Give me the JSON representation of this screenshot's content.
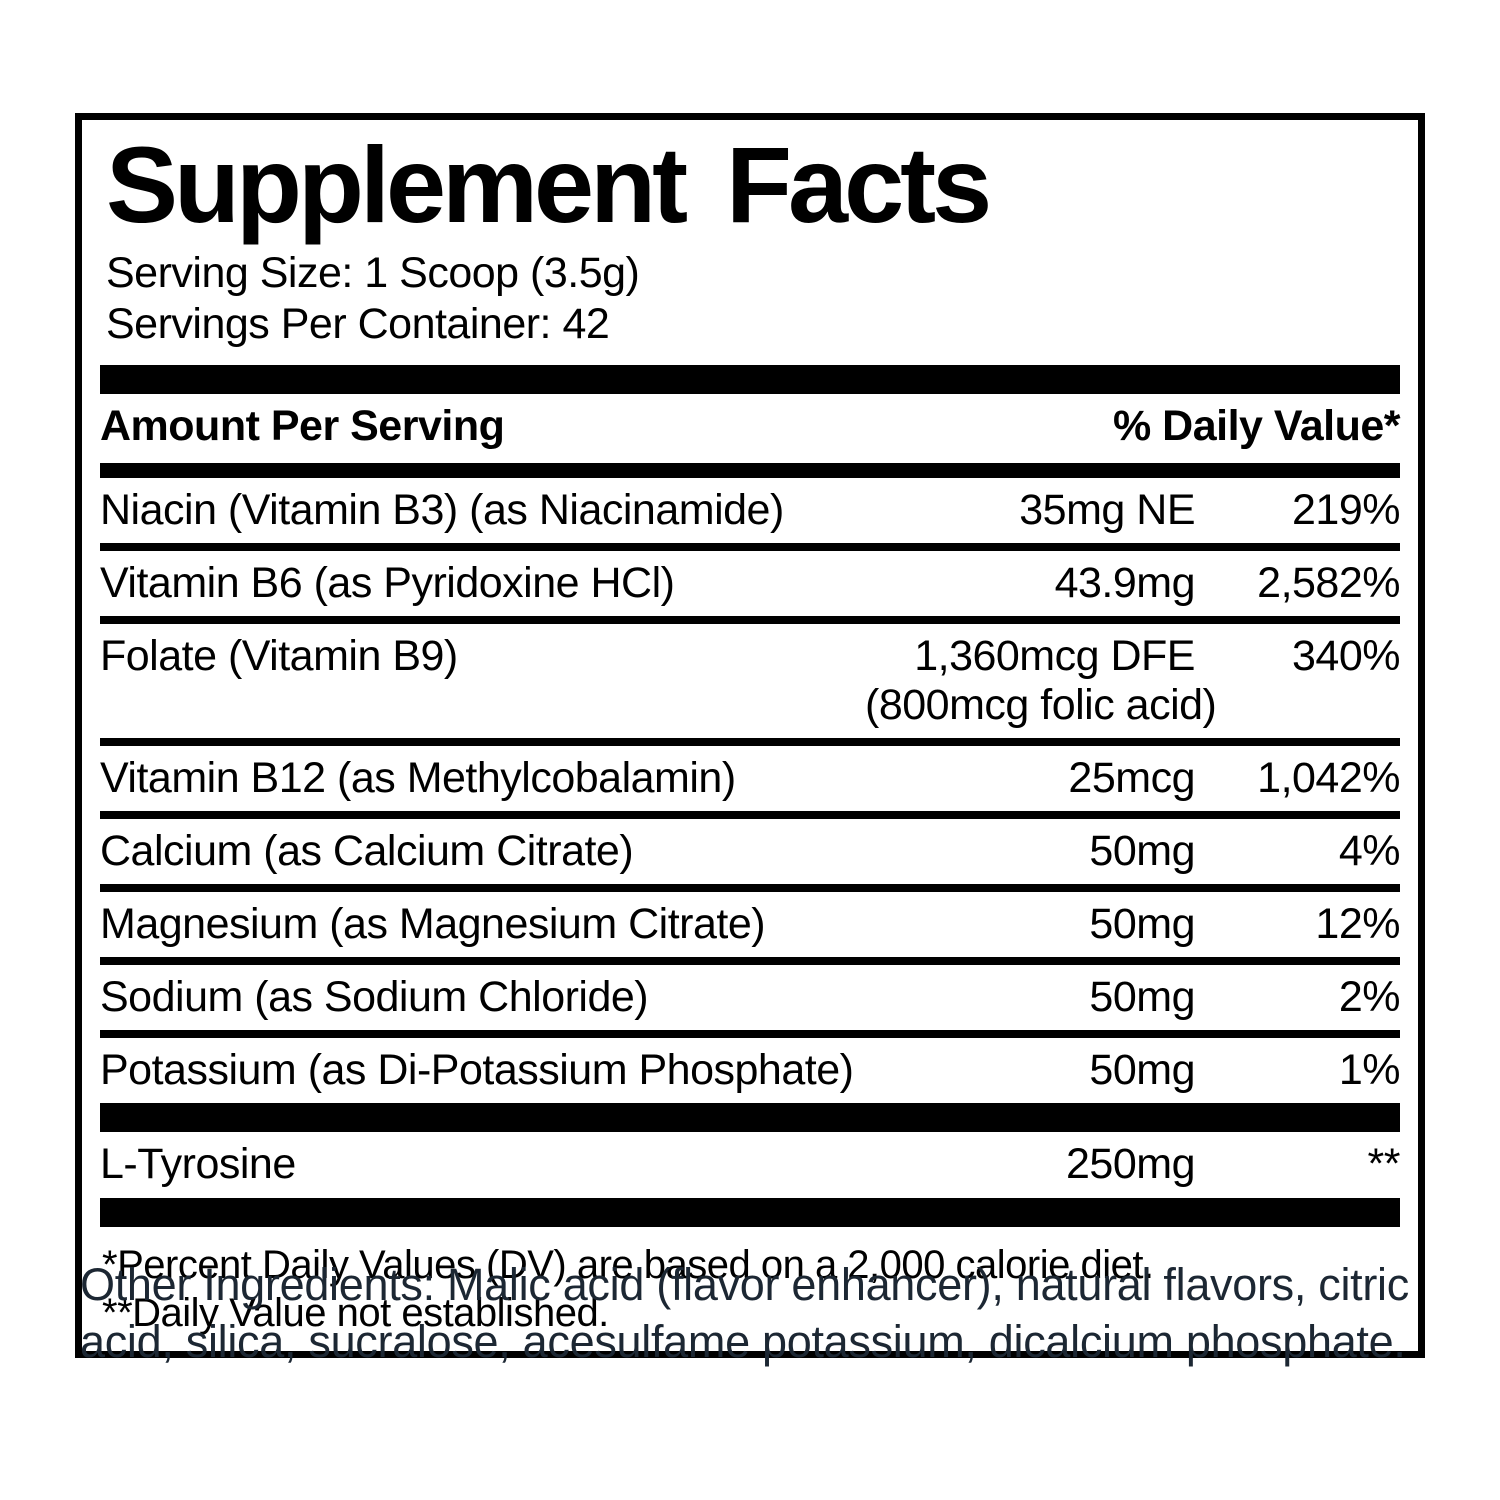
{
  "label": {
    "title": "Supplement Facts",
    "serving_size": "Serving Size: 1 Scoop (3.5g)",
    "servings_per_container": "Servings Per Container: 42",
    "header": {
      "amount_label": "Amount Per Serving",
      "dv_label": "% Daily Value*"
    },
    "rows": [
      {
        "name": "Niacin (Vitamin B3) (as Niacinamide)",
        "amount": "35mg NE",
        "dv": "219%"
      },
      {
        "name": "Vitamin B6 (as Pyridoxine HCl)",
        "amount": "43.9mg",
        "dv": "2,582%"
      },
      {
        "name": "Folate (Vitamin B9)",
        "amount": "1,360mcg DFE",
        "amount_note": "(800mcg folic acid)",
        "dv": "340%"
      },
      {
        "name": "Vitamin B12 (as Methylcobalamin)",
        "amount": "25mcg",
        "dv": "1,042%"
      },
      {
        "name": "Calcium (as Calcium Citrate)",
        "amount": "50mg",
        "dv": "4%"
      },
      {
        "name": "Magnesium (as Magnesium Citrate)",
        "amount": "50mg",
        "dv": "12%"
      },
      {
        "name": "Sodium (as Sodium Chloride)",
        "amount": "50mg",
        "dv": "2%"
      },
      {
        "name": "Potassium (as Di-Potassium Phosphate)",
        "amount": "50mg",
        "dv": "1%"
      }
    ],
    "other_rows": [
      {
        "name": "L-Tyrosine",
        "amount": "250mg",
        "dv": "**"
      }
    ],
    "footnotes": [
      "*Percent Daily Values (DV) are based on a 2,000 calorie diet.",
      "**Daily Value not established."
    ],
    "other_ingredients": "Other Ingredients: Malic acid (flavor enhancer), natural flavors, citric acid, silica, sucralose, acesulfame potassium, dicalcium phosphate."
  },
  "colors": {
    "panel_border": "#000000",
    "bar": "#000000",
    "text": "#000000",
    "other_ingredients_text": "#1c2733",
    "background": "#ffffff"
  }
}
